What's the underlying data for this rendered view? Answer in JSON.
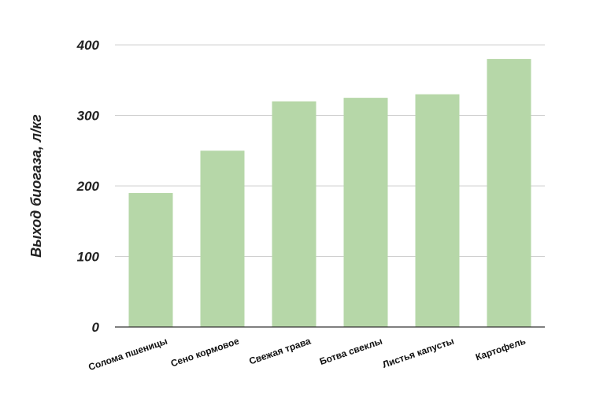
{
  "chart_data": {
    "type": "bar",
    "categories": [
      "Солома пшеницы",
      "Сено кормовое",
      "Свежая трава",
      "Ботва свеклы",
      "Листья капусты",
      "Картофель"
    ],
    "values": [
      190,
      250,
      320,
      325,
      330,
      380
    ],
    "ylabel": "Выход биогаза, л/кг",
    "xlabel": "",
    "ylim": [
      0,
      400
    ],
    "yticks": [
      0,
      100,
      200,
      300,
      400
    ],
    "grid": true,
    "bar_color": "#b6d7a8",
    "grid_color": "#d0d0d0",
    "axis_color": "#333333"
  }
}
